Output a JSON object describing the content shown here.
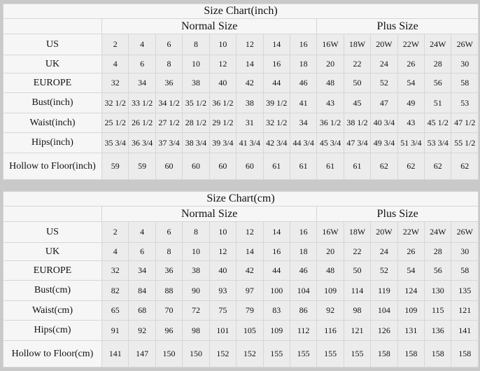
{
  "tables": [
    {
      "title": "Size Chart(inch)",
      "normal_label": "Normal Size",
      "plus_label": "Plus Size",
      "rows": [
        {
          "label": "US",
          "values": [
            "2",
            "4",
            "6",
            "8",
            "10",
            "12",
            "14",
            "16",
            "16W",
            "18W",
            "20W",
            "22W",
            "24W",
            "26W"
          ]
        },
        {
          "label": "UK",
          "values": [
            "4",
            "6",
            "8",
            "10",
            "12",
            "14",
            "16",
            "18",
            "20",
            "22",
            "24",
            "26",
            "28",
            "30"
          ]
        },
        {
          "label": "EUROPE",
          "values": [
            "32",
            "34",
            "36",
            "38",
            "40",
            "42",
            "44",
            "46",
            "48",
            "50",
            "52",
            "54",
            "56",
            "58"
          ]
        },
        {
          "label": "Bust(inch)",
          "values": [
            "32 1/2",
            "33 1/2",
            "34 1/2",
            "35 1/2",
            "36 1/2",
            "38",
            "39 1/2",
            "41",
            "43",
            "45",
            "47",
            "49",
            "51",
            "53"
          ]
        },
        {
          "label": "Waist(inch)",
          "values": [
            "25 1/2",
            "26 1/2",
            "27 1/2",
            "28 1/2",
            "29 1/2",
            "31",
            "32 1/2",
            "34",
            "36 1/2",
            "38 1/2",
            "40 3/4",
            "43",
            "45 1/2",
            "47 1/2"
          ]
        },
        {
          "label": "Hips(inch)",
          "values": [
            "35 3/4",
            "36 3/4",
            "37 3/4",
            "38 3/4",
            "39 3/4",
            "41 3/4",
            "42 3/4",
            "44 3/4",
            "45 3/4",
            "47 3/4",
            "49 3/4",
            "51 3/4",
            "53 3/4",
            "55 1/2"
          ]
        },
        {
          "label": "Hollow to Floor(inch)",
          "values": [
            "59",
            "59",
            "60",
            "60",
            "60",
            "60",
            "61",
            "61",
            "61",
            "61",
            "62",
            "62",
            "62",
            "62"
          ]
        }
      ]
    },
    {
      "title": "Size Chart(cm)",
      "normal_label": "Normal Size",
      "plus_label": "Plus Size",
      "rows": [
        {
          "label": "US",
          "values": [
            "2",
            "4",
            "6",
            "8",
            "10",
            "12",
            "14",
            "16",
            "16W",
            "18W",
            "20W",
            "22W",
            "24W",
            "26W"
          ]
        },
        {
          "label": "UK",
          "values": [
            "4",
            "6",
            "8",
            "10",
            "12",
            "14",
            "16",
            "18",
            "20",
            "22",
            "24",
            "26",
            "28",
            "30"
          ]
        },
        {
          "label": "EUROPE",
          "values": [
            "32",
            "34",
            "36",
            "38",
            "40",
            "42",
            "44",
            "46",
            "48",
            "50",
            "52",
            "54",
            "56",
            "58"
          ]
        },
        {
          "label": "Bust(cm)",
          "values": [
            "82",
            "84",
            "88",
            "90",
            "93",
            "97",
            "100",
            "104",
            "109",
            "114",
            "119",
            "124",
            "130",
            "135"
          ]
        },
        {
          "label": "Waist(cm)",
          "values": [
            "65",
            "68",
            "70",
            "72",
            "75",
            "79",
            "83",
            "86",
            "92",
            "98",
            "104",
            "109",
            "115",
            "121"
          ]
        },
        {
          "label": "Hips(cm)",
          "values": [
            "91",
            "92",
            "96",
            "98",
            "101",
            "105",
            "109",
            "112",
            "116",
            "121",
            "126",
            "131",
            "136",
            "141"
          ]
        },
        {
          "label": "Hollow to Floor(cm)",
          "values": [
            "141",
            "147",
            "150",
            "150",
            "152",
            "152",
            "155",
            "155",
            "155",
            "155",
            "158",
            "158",
            "158",
            "158"
          ]
        }
      ]
    }
  ]
}
